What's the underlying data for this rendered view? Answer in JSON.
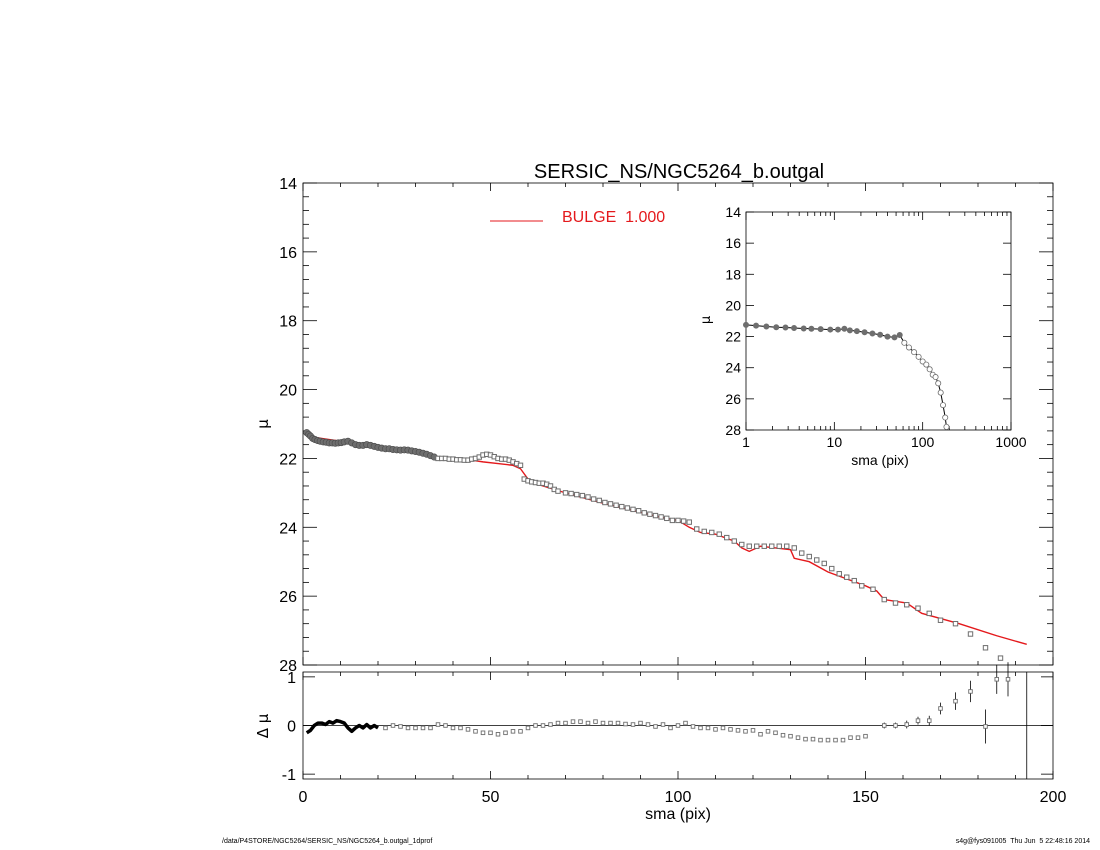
{
  "chart_data": {
    "title": "SERSIC_NS/NGC5264_b.outgal",
    "main": {
      "type": "scatter",
      "ylabel": "μ",
      "xlim": [
        0,
        200
      ],
      "ylim": [
        28,
        14
      ],
      "xticks": [
        "0",
        "50",
        "100",
        "150",
        "200"
      ],
      "yticks": [
        "14",
        "16",
        "18",
        "20",
        "22",
        "24",
        "26",
        "28"
      ],
      "legend": {
        "placement": "top-center",
        "entries": [
          {
            "label": "BULGE  1.000",
            "color": "#e4191c"
          }
        ]
      },
      "observed_x": [
        1.0,
        1.5,
        2.0,
        2.6,
        3.2,
        3.9,
        4.6,
        5.4,
        6.2,
        7.0,
        7.8,
        8.6,
        9.4,
        10.2,
        11.0,
        12.0,
        13.0,
        14.0,
        15.0,
        16.0,
        17.0,
        18.0,
        19.0,
        20.0,
        21.0,
        22.0,
        23.0,
        24.0,
        25.0,
        26.0,
        27.0,
        28.0,
        29.0,
        30.0,
        31.0,
        32.0,
        33.0,
        34.0,
        35.0,
        36.0,
        37.0,
        38.0,
        39.0,
        40.0,
        41.0,
        42.0,
        43.0,
        44.0,
        45.0,
        46.0,
        47.0,
        48.0,
        49.0,
        50.0,
        51.0,
        52.0,
        53.0,
        54.0,
        55.0,
        56.0,
        57.0,
        58.0,
        59.0,
        60.0,
        61.0,
        62.0,
        63.0,
        64.0,
        65.0,
        66.0,
        67.0,
        68.0,
        70.0,
        71.5,
        73.0,
        74.5,
        76.0,
        77.5,
        79.0,
        80.5,
        82.0,
        83.5,
        85.0,
        86.5,
        88.0,
        89.5,
        91.0,
        92.5,
        94.0,
        95.5,
        97.0,
        98.5,
        100.0,
        101.5,
        103.0,
        105.0,
        107.0,
        109.0,
        111.0,
        113.0,
        115.0,
        117.0,
        119.0,
        121.0,
        123.0,
        125.0,
        127.0,
        129.0,
        131.0,
        133.0,
        135.0,
        137.0,
        139.0,
        141.0,
        143.0,
        145.0,
        147.0,
        149.0,
        152.0,
        155.0,
        158.0,
        161.0,
        164.0,
        167.0,
        170.0,
        174.0,
        178.0,
        182.0,
        186.0
      ],
      "observed_y": [
        21.25,
        21.3,
        21.35,
        21.42,
        21.45,
        21.48,
        21.5,
        21.52,
        21.53,
        21.55,
        21.55,
        21.56,
        21.55,
        21.54,
        21.52,
        21.5,
        21.55,
        21.6,
        21.62,
        21.62,
        21.6,
        21.62,
        21.65,
        21.68,
        21.7,
        21.72,
        21.72,
        21.74,
        21.75,
        21.76,
        21.75,
        21.76,
        21.78,
        21.8,
        21.82,
        21.85,
        21.88,
        21.92,
        21.96,
        22.0,
        22.0,
        22.0,
        22.02,
        22.02,
        22.04,
        22.04,
        22.05,
        22.05,
        22.02,
        22.0,
        21.96,
        21.9,
        21.88,
        21.9,
        21.95,
        22.0,
        22.02,
        22.02,
        22.05,
        22.1,
        22.15,
        22.2,
        22.6,
        22.65,
        22.68,
        22.7,
        22.72,
        22.72,
        22.75,
        22.8,
        22.9,
        22.95,
        23.0,
        23.02,
        23.05,
        23.08,
        23.12,
        23.18,
        23.22,
        23.28,
        23.32,
        23.36,
        23.4,
        23.44,
        23.48,
        23.52,
        23.58,
        23.62,
        23.66,
        23.7,
        23.74,
        23.8,
        23.8,
        23.82,
        23.85,
        24.05,
        24.12,
        24.15,
        24.2,
        24.3,
        24.4,
        24.5,
        24.55,
        24.55,
        24.55,
        24.55,
        24.55,
        24.55,
        24.6,
        24.75,
        24.85,
        24.95,
        25.05,
        25.2,
        25.35,
        25.45,
        25.55,
        25.7,
        25.8,
        26.1,
        26.2,
        26.25,
        26.35,
        26.5,
        26.7,
        26.8,
        27.1,
        27.5,
        27.8
      ],
      "model_x": [
        1.0,
        5.0,
        10.0,
        15.0,
        20.0,
        25.0,
        30.0,
        34.0,
        36.0,
        40.0,
        45.0,
        48.0,
        52.0,
        56.0,
        58.0,
        60.0,
        61.0,
        70.0,
        80.0,
        95.0,
        100.0,
        103.0,
        106.0,
        110.0,
        115.0,
        117.0,
        119.0,
        120.0,
        122.0,
        126.0,
        130.0,
        131.0,
        135.0,
        140.0,
        150.0,
        153.0,
        155.0,
        158.0,
        161.0,
        165.0,
        175.0,
        185.0,
        193.0
      ],
      "model_y": [
        21.35,
        21.42,
        21.5,
        21.58,
        21.65,
        21.72,
        21.78,
        21.85,
        21.95,
        22.0,
        22.05,
        22.1,
        22.15,
        22.2,
        22.3,
        22.6,
        22.7,
        23.0,
        23.3,
        23.7,
        23.8,
        24.0,
        24.15,
        24.2,
        24.4,
        24.6,
        24.7,
        24.65,
        24.55,
        24.6,
        24.65,
        24.9,
        25.0,
        25.3,
        25.7,
        25.85,
        26.1,
        26.15,
        26.2,
        26.5,
        26.8,
        27.15,
        27.4
      ]
    },
    "inset": {
      "type": "scatter",
      "ylabel": "μ",
      "xlabel": "sma (pix)",
      "xscale": "log",
      "xlim": [
        1,
        1000
      ],
      "ylim": [
        28,
        14
      ],
      "xticks": [
        "1",
        "10",
        "100",
        "1000"
      ],
      "yticks": [
        "14",
        "16",
        "18",
        "20",
        "22",
        "24",
        "26",
        "28"
      ],
      "x": [
        1.0,
        1.3,
        1.7,
        2.2,
        2.8,
        3.5,
        4.5,
        5.5,
        7.0,
        9.0,
        11.0,
        13.0,
        15.0,
        18.0,
        22.0,
        27.0,
        33.0,
        40.0,
        48.0,
        55.0,
        62.0,
        70.0,
        80.0,
        90.0,
        100.0,
        110.0,
        120.0,
        130.0,
        140.0,
        150.0,
        160.0,
        170.0,
        180.0,
        186.0
      ],
      "y": [
        21.25,
        21.3,
        21.35,
        21.4,
        21.42,
        21.45,
        21.48,
        21.5,
        21.52,
        21.55,
        21.55,
        21.5,
        21.6,
        21.65,
        21.72,
        21.8,
        21.88,
        22.0,
        22.05,
        21.9,
        22.4,
        22.7,
        23.0,
        23.3,
        23.6,
        23.8,
        24.1,
        24.45,
        24.6,
        25.0,
        25.6,
        26.4,
        27.2,
        27.8
      ]
    },
    "residual": {
      "type": "scatter",
      "ylabel": "Δ μ",
      "xlabel": "sma (pix)",
      "xlim": [
        0,
        200
      ],
      "ylim": [
        -1.1,
        1.1
      ],
      "xticks": [
        "0",
        "50",
        "100",
        "150",
        "200"
      ],
      "yticks": [
        "1",
        "0",
        "-1"
      ],
      "reference_x": 193,
      "x": [
        1.0,
        2.0,
        3.0,
        4.0,
        5.0,
        6.0,
        7.0,
        8.0,
        9.0,
        10.0,
        11.0,
        12.0,
        13.0,
        14.0,
        15.0,
        16.0,
        17.0,
        18.0,
        19.0,
        20.0,
        22.0,
        24.0,
        26.0,
        28.0,
        30.0,
        32.0,
        34.0,
        36.0,
        38.0,
        40.0,
        42.0,
        44.0,
        46.0,
        48.0,
        50.0,
        52.0,
        54.0,
        56.0,
        58.0,
        60.0,
        62.0,
        64.0,
        66.0,
        68.0,
        70.0,
        72.0,
        74.0,
        76.0,
        78.0,
        80.0,
        82.0,
        84.0,
        86.0,
        88.0,
        90.0,
        92.0,
        94.0,
        96.0,
        98.0,
        100.0,
        102.0,
        104.0,
        106.0,
        108.0,
        110.0,
        112.0,
        114.0,
        116.0,
        118.0,
        120.0,
        122.0,
        124.0,
        126.0,
        128.0,
        130.0,
        132.0,
        134.0,
        136.0,
        138.0,
        140.0,
        142.0,
        144.0,
        146.0,
        148.0,
        150.0,
        155.0,
        158.0,
        161.0,
        164.0,
        167.0,
        170.0,
        174.0,
        178.0,
        182.0,
        185.0,
        188.0
      ],
      "y": [
        -0.15,
        -0.1,
        0.0,
        0.05,
        0.05,
        0.02,
        0.08,
        0.05,
        0.1,
        0.08,
        0.05,
        -0.05,
        -0.12,
        -0.05,
        0.0,
        -0.05,
        0.02,
        -0.05,
        0.0,
        -0.05,
        -0.05,
        0.0,
        -0.02,
        -0.05,
        -0.05,
        -0.05,
        -0.05,
        0.02,
        0.0,
        -0.05,
        -0.05,
        -0.08,
        -0.12,
        -0.15,
        -0.15,
        -0.18,
        -0.15,
        -0.12,
        -0.12,
        -0.05,
        0.0,
        0.0,
        0.02,
        0.05,
        0.05,
        0.08,
        0.08,
        0.05,
        0.08,
        0.05,
        0.05,
        0.05,
        0.03,
        0.02,
        0.05,
        0.02,
        -0.02,
        0.02,
        -0.05,
        0.0,
        0.05,
        -0.02,
        -0.05,
        -0.05,
        -0.08,
        -0.05,
        -0.08,
        -0.1,
        -0.12,
        -0.1,
        -0.18,
        -0.12,
        -0.15,
        -0.2,
        -0.22,
        -0.25,
        -0.28,
        -0.28,
        -0.3,
        -0.3,
        -0.3,
        -0.3,
        -0.25,
        -0.25,
        -0.22,
        0.0,
        0.0,
        0.02,
        0.1,
        0.1,
        0.35,
        0.5,
        0.7,
        -0.02,
        0.95,
        0.95
      ],
      "errors": [
        0.02,
        0.02,
        0.02,
        0.02,
        0.02,
        0.02,
        0.02,
        0.02,
        0.02,
        0.02,
        0.02,
        0.02,
        0.02,
        0.02,
        0.02,
        0.02,
        0.02,
        0.02,
        0.02,
        0.02,
        0.02,
        0.02,
        0.02,
        0.02,
        0.02,
        0.02,
        0.02,
        0.02,
        0.02,
        0.02,
        0.02,
        0.02,
        0.02,
        0.02,
        0.02,
        0.02,
        0.02,
        0.02,
        0.02,
        0.02,
        0.02,
        0.02,
        0.02,
        0.02,
        0.02,
        0.02,
        0.02,
        0.02,
        0.02,
        0.02,
        0.02,
        0.02,
        0.02,
        0.02,
        0.02,
        0.02,
        0.02,
        0.02,
        0.02,
        0.02,
        0.02,
        0.02,
        0.02,
        0.02,
        0.02,
        0.02,
        0.02,
        0.02,
        0.02,
        0.02,
        0.02,
        0.02,
        0.02,
        0.02,
        0.02,
        0.02,
        0.02,
        0.02,
        0.02,
        0.02,
        0.02,
        0.02,
        0.02,
        0.02,
        0.02,
        0.06,
        0.06,
        0.08,
        0.08,
        0.1,
        0.12,
        0.18,
        0.22,
        0.35,
        0.3,
        0.35
      ]
    },
    "grid": false,
    "colors": {
      "observed": "#6e6e6e",
      "model": "#e4191c",
      "axes": "#000000"
    }
  },
  "footer": {
    "left": "/data/P4STORE/NGC5264/SERSIC_NS/NGC5264_b.outgal_1dprof",
    "right": "s4g@fys091005  Thu Jun  5 22:48:16 2014"
  }
}
